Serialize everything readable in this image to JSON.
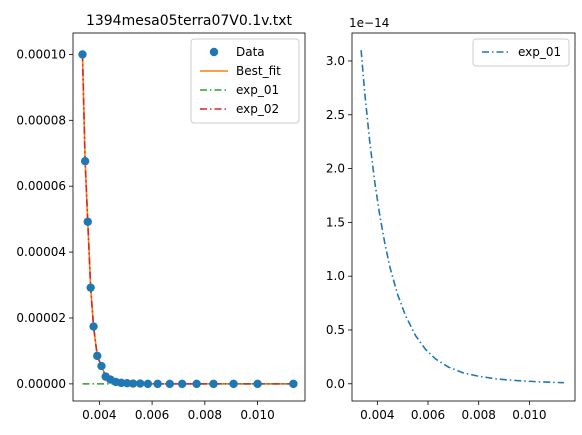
{
  "chart_data": [
    {
      "type": "line",
      "title": "1394mesa05terra07V0.1v.txt",
      "xlabel": "",
      "ylabel": "",
      "xlim": [
        0.003,
        0.0118
      ],
      "ylim": [
        -5.2e-06,
        0.0001065
      ],
      "xticks": [
        0.004,
        0.006,
        0.008,
        0.01
      ],
      "xtick_labels": [
        "0.004",
        "0.006",
        "0.008",
        "0.010"
      ],
      "yticks": [
        0.0,
        2e-05,
        4e-05,
        6e-05,
        8e-05,
        0.0001
      ],
      "ytick_labels": [
        "0.00000",
        "0.00002",
        "0.00004",
        "0.00006",
        "0.00008",
        "0.00010"
      ],
      "legend": {
        "position": "top-right",
        "entries": [
          "Data",
          "Best_fit",
          "exp_01",
          "exp_02"
        ]
      },
      "grid": false,
      "series": [
        {
          "name": "Data",
          "style": "scatter",
          "color": "#1f77b4",
          "x": [
            0.00336,
            0.00346,
            0.00356,
            0.00367,
            0.00378,
            0.00392,
            0.00408,
            0.00424,
            0.00442,
            0.00462,
            0.00483,
            0.00505,
            0.00528,
            0.00555,
            0.00584,
            0.00621,
            0.00667,
            0.00714,
            0.00769,
            0.00833,
            0.00909,
            0.01,
            0.01136
          ],
          "y": [
            0.0001,
            6.76e-05,
            4.92e-05,
            2.92e-05,
            1.74e-05,
            8.5e-06,
            5.4e-06,
            2.2e-06,
            1.3e-06,
            6e-07,
            3e-07,
            2e-07,
            1e-07,
            1e-07,
            0.0,
            0.0,
            0.0,
            0.0,
            0.0,
            0.0,
            0.0,
            0.0,
            0.0
          ]
        },
        {
          "name": "Best_fit",
          "style": "line",
          "color": "#ff7f0e",
          "x": [
            0.00336,
            0.00346,
            0.00356,
            0.00367,
            0.00378,
            0.00392,
            0.00408,
            0.00424,
            0.00442,
            0.00462,
            0.00483,
            0.00505,
            0.00528,
            0.00555,
            0.00584,
            0.00621,
            0.00667,
            0.00714,
            0.00769,
            0.00833,
            0.00909,
            0.01,
            0.01136
          ],
          "y": [
            0.0001,
            6.76e-05,
            4.92e-05,
            2.92e-05,
            1.74e-05,
            8.5e-06,
            5.4e-06,
            2.2e-06,
            1.3e-06,
            6e-07,
            3e-07,
            2e-07,
            1e-07,
            1e-07,
            0.0,
            0.0,
            0.0,
            0.0,
            0.0,
            0.0,
            0.0,
            0.0,
            0.0
          ]
        },
        {
          "name": "exp_01",
          "style": "dashdot",
          "color": "#2ca02c",
          "x": [
            0.00336,
            0.00408,
            0.00505,
            0.00621,
            0.00769,
            0.01,
            0.01136
          ],
          "y": [
            0.0,
            0.0,
            0.0,
            0.0,
            0.0,
            0.0,
            0.0
          ]
        },
        {
          "name": "exp_02",
          "style": "dashdot",
          "color": "#d62728",
          "x": [
            0.00336,
            0.00346,
            0.00356,
            0.00367,
            0.00378,
            0.00392,
            0.00408,
            0.00424,
            0.00442,
            0.00462,
            0.00483,
            0.00505,
            0.00528,
            0.00555,
            0.00584,
            0.00621,
            0.00667,
            0.00714,
            0.00769,
            0.00833,
            0.00909,
            0.01,
            0.01136
          ],
          "y": [
            0.0001,
            6.76e-05,
            4.92e-05,
            2.92e-05,
            1.74e-05,
            8.5e-06,
            5.4e-06,
            2.2e-06,
            1.3e-06,
            6e-07,
            3e-07,
            2e-07,
            1e-07,
            1e-07,
            0.0,
            0.0,
            0.0,
            0.0,
            0.0,
            0.0,
            0.0,
            0.0,
            0.0
          ]
        }
      ]
    },
    {
      "type": "line",
      "title": "",
      "xlabel": "",
      "ylabel": "",
      "xlim": [
        0.003,
        0.0118
      ],
      "ylim": [
        -0.16,
        3.26
      ],
      "y_offset_label": "1e−14",
      "xticks": [
        0.004,
        0.006,
        0.008,
        0.01
      ],
      "xtick_labels": [
        "0.004",
        "0.006",
        "0.008",
        "0.010"
      ],
      "yticks": [
        0.0,
        0.5,
        1.0,
        1.5,
        2.0,
        2.5,
        3.0
      ],
      "ytick_labels": [
        "0.0",
        "0.5",
        "1.0",
        "1.5",
        "2.0",
        "2.5",
        "3.0"
      ],
      "legend": {
        "position": "top-right",
        "entries": [
          "exp_01"
        ]
      },
      "grid": false,
      "series": [
        {
          "name": "exp_01",
          "style": "dashdot",
          "color": "#1f77b4",
          "x": [
            0.00336,
            0.0035,
            0.0037,
            0.0039,
            0.0041,
            0.0043,
            0.0045,
            0.0048,
            0.0051,
            0.0055,
            0.0059,
            0.0063,
            0.0068,
            0.0074,
            0.008,
            0.0087,
            0.0095,
            0.0104,
            0.01136
          ],
          "y": [
            3.1,
            2.71,
            2.25,
            1.87,
            1.56,
            1.3,
            1.08,
            0.83,
            0.64,
            0.45,
            0.32,
            0.23,
            0.156,
            0.1,
            0.07,
            0.045,
            0.03,
            0.018,
            0.01
          ]
        }
      ]
    }
  ]
}
